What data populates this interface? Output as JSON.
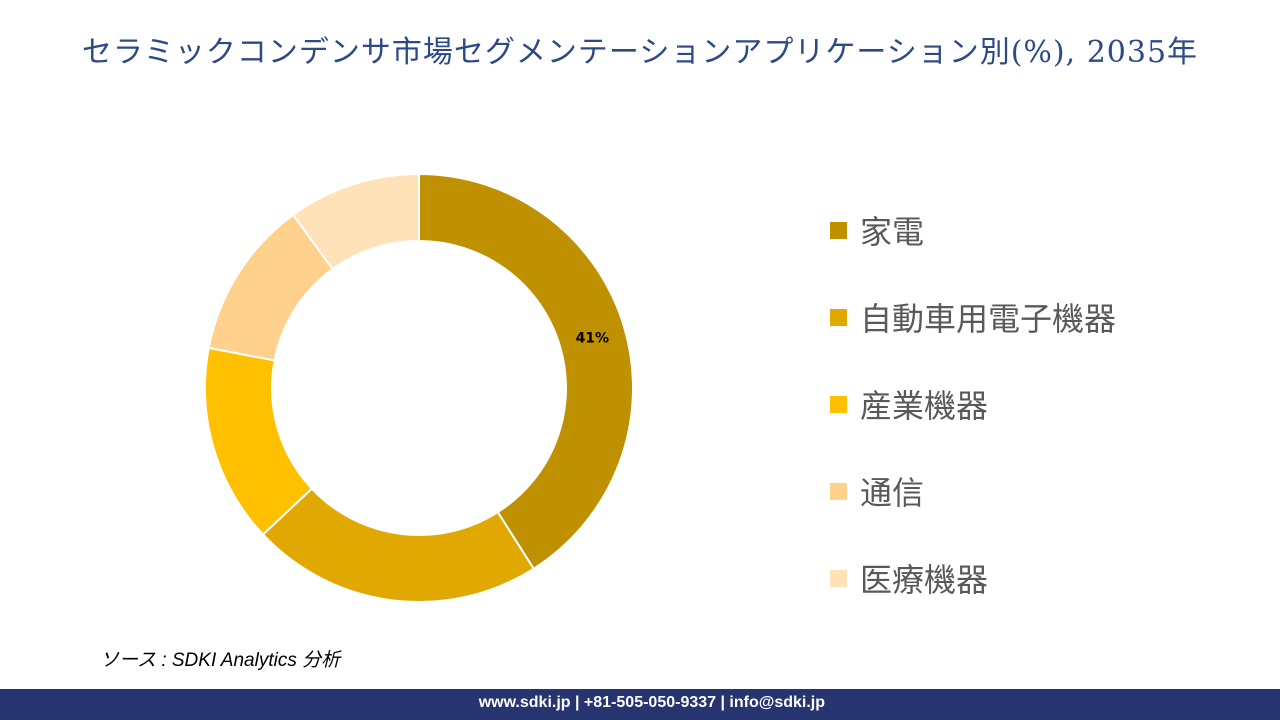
{
  "chart_data": {
    "type": "pie",
    "variant": "donut",
    "title": "セラミックコンデンサ市場セグメンテーションアプリケーション別(%), 2035年",
    "categories": [
      "家電",
      "自動車用電子機器",
      "産業機器",
      "通信",
      "医療機器"
    ],
    "values": [
      41,
      22,
      15,
      12,
      10
    ],
    "colors": [
      "#BF9000",
      "#E0A800",
      "#FFC000",
      "#FFD18C",
      "#FFE2B8"
    ],
    "data_labels": [
      "41%",
      "",
      "",
      "",
      ""
    ],
    "legend_position": "right"
  },
  "source": "ソース : SDKI Analytics 分析",
  "footer": "www.sdki.jp | +81-505-050-9337 | info@sdki.jp"
}
